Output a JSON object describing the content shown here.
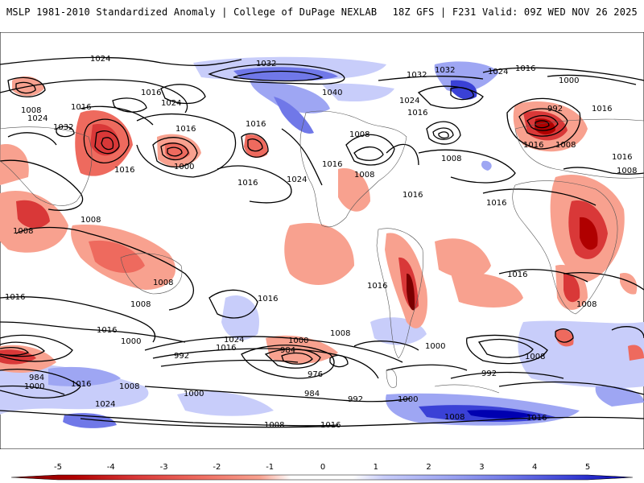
{
  "header": {
    "left_title": "MSLP 1981-2010 Standardized Anomaly | College of DuPage NEXLAB",
    "right_title": "18Z GFS | F231 Valid: 09Z WED NOV 26 2025"
  },
  "colorbar": {
    "ticks": [
      "-5",
      "-4",
      "-3",
      "-2",
      "-1",
      "0",
      "1",
      "2",
      "3",
      "4",
      "5"
    ],
    "colors": [
      "#7a0000",
      "#b00000",
      "#d93838",
      "#ee6a5e",
      "#f8a18f",
      "#ffffff",
      "#c8cdfa",
      "#9ea6f3",
      "#7078e8",
      "#3a41d6",
      "#0000b0"
    ]
  },
  "contour_labels": [
    {
      "text": "1024"
    },
    {
      "text": "1032"
    },
    {
      "text": "1032"
    },
    {
      "text": "1032"
    },
    {
      "text": "1024"
    },
    {
      "text": "1016"
    },
    {
      "text": "1000"
    },
    {
      "text": "1008"
    },
    {
      "text": "1016"
    },
    {
      "text": "1016"
    },
    {
      "text": "1024"
    },
    {
      "text": "1040"
    },
    {
      "text": "1024"
    },
    {
      "text": "1016"
    },
    {
      "text": "992"
    },
    {
      "text": "1016"
    },
    {
      "text": "1024"
    },
    {
      "text": "1032"
    },
    {
      "text": "1016"
    },
    {
      "text": "1000"
    },
    {
      "text": "1016"
    },
    {
      "text": "1016"
    },
    {
      "text": "1024"
    },
    {
      "text": "1008"
    },
    {
      "text": "1008"
    },
    {
      "text": "1016"
    },
    {
      "text": "1016"
    },
    {
      "text": "1008"
    },
    {
      "text": "1016"
    },
    {
      "text": "1016"
    },
    {
      "text": "1008"
    },
    {
      "text": "1016"
    },
    {
      "text": "1008"
    },
    {
      "text": "1008"
    },
    {
      "text": "1008"
    },
    {
      "text": "1016"
    },
    {
      "text": "1016"
    },
    {
      "text": "1016"
    },
    {
      "text": "1008"
    },
    {
      "text": "1016"
    },
    {
      "text": "1008"
    },
    {
      "text": "1016"
    },
    {
      "text": "1016"
    },
    {
      "text": "1008"
    },
    {
      "text": "1000"
    },
    {
      "text": "992"
    },
    {
      "text": "1024"
    },
    {
      "text": "1016"
    },
    {
      "text": "1000"
    },
    {
      "text": "984"
    },
    {
      "text": "976"
    },
    {
      "text": "1008"
    },
    {
      "text": "1000"
    },
    {
      "text": "1008"
    },
    {
      "text": "992"
    },
    {
      "text": "984"
    },
    {
      "text": "1000"
    },
    {
      "text": "1016"
    },
    {
      "text": "1008"
    },
    {
      "text": "1024"
    },
    {
      "text": "1000"
    },
    {
      "text": "984"
    },
    {
      "text": "992"
    },
    {
      "text": "1000"
    },
    {
      "text": "1008"
    },
    {
      "text": "1016"
    },
    {
      "text": "1008"
    },
    {
      "text": "1016"
    }
  ]
}
